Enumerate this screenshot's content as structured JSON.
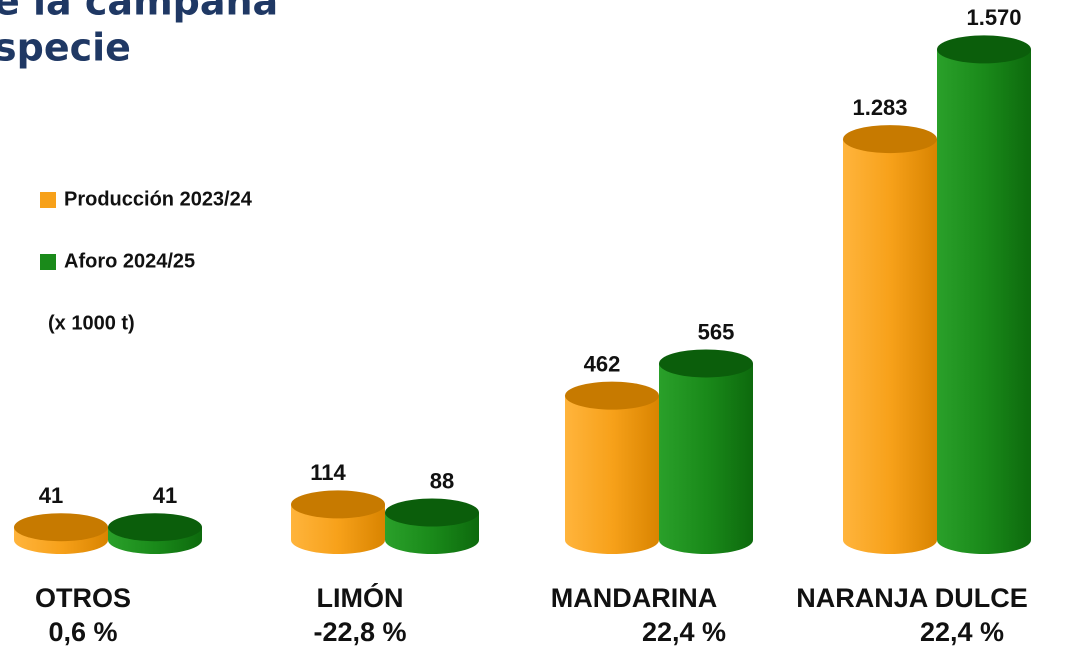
{
  "chart_data": {
    "type": "bar3d",
    "title_lines": [
      "e la campaña",
      "specie"
    ],
    "unit_note": "(x 1000 t)",
    "categories": [
      "OTROS",
      "LIMÓN",
      "MANDARINA",
      "NARANJA DULCE"
    ],
    "category_notes": [
      "0,6 %",
      "-22,8 %",
      "22,4 %",
      "22,4 %"
    ],
    "series": [
      {
        "name": "Producción 2023/24",
        "color": "#f7a11a",
        "values": [
          41,
          114,
          462,
          1283
        ],
        "value_labels": [
          "41",
          "114",
          "462",
          "1.283"
        ]
      },
      {
        "name": "Aforo 2024/25",
        "color": "#1a8a1a",
        "values": [
          41,
          88,
          565,
          1570
        ],
        "value_labels": [
          "41",
          "88",
          "565",
          "1.570"
        ]
      }
    ],
    "ylim": [
      0,
      1600
    ]
  }
}
